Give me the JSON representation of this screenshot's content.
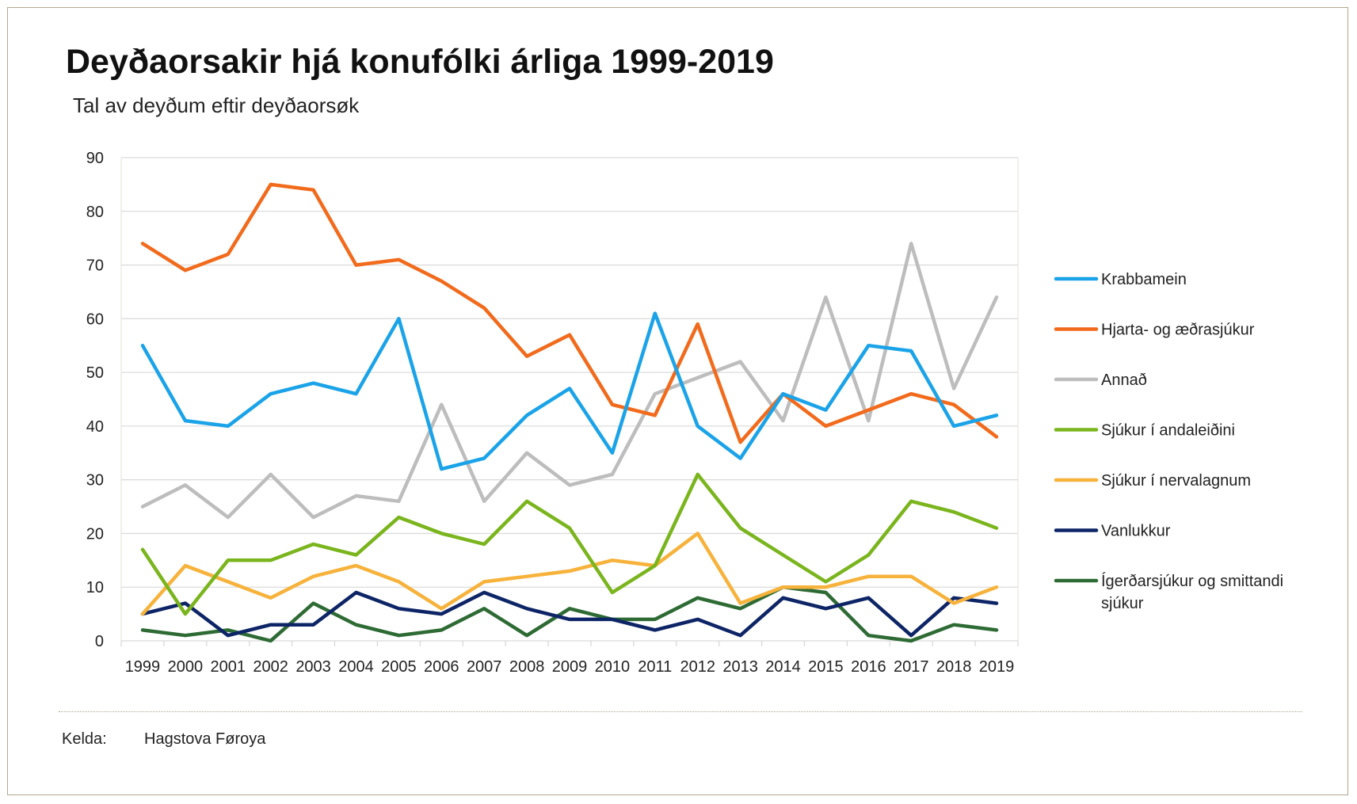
{
  "title": "Deyðaorsakir hjá konufólki árliga 1999-2019",
  "subtitle": "Tal av deyðum eftir deyðaorsøk",
  "source": {
    "label": "Kelda:",
    "value": "Hagstova Føroya"
  },
  "chart_data": {
    "type": "line",
    "title": "Deyðaorsakir hjá konufólki árliga 1999-2019",
    "subtitle": "Tal av deyðum eftir deyðaorsøk",
    "xlabel": "",
    "ylabel": "",
    "ylim": [
      0,
      90
    ],
    "yticks": [
      0,
      10,
      20,
      30,
      40,
      50,
      60,
      70,
      80,
      90
    ],
    "grid": true,
    "legend_position": "right",
    "categories": [
      "1999",
      "2000",
      "2001",
      "2002",
      "2003",
      "2004",
      "2005",
      "2006",
      "2007",
      "2008",
      "2009",
      "2010",
      "2011",
      "2012",
      "2013",
      "2014",
      "2015",
      "2016",
      "2017",
      "2018",
      "2019"
    ],
    "series": [
      {
        "name": "Krabbamein",
        "color": "#1aa3e8",
        "values": [
          55,
          41,
          40,
          46,
          48,
          46,
          60,
          32,
          34,
          42,
          47,
          35,
          61,
          40,
          34,
          46,
          43,
          55,
          54,
          40,
          42
        ]
      },
      {
        "name": "Hjarta- og æðrasjúkur",
        "color": "#f26a1b",
        "values": [
          74,
          69,
          72,
          85,
          84,
          70,
          71,
          67,
          62,
          53,
          57,
          44,
          42,
          59,
          37,
          46,
          40,
          43,
          46,
          44,
          38
        ]
      },
      {
        "name": "Annað",
        "color": "#bdbdbd",
        "values": [
          25,
          29,
          23,
          31,
          23,
          27,
          26,
          44,
          26,
          35,
          29,
          31,
          46,
          49,
          52,
          41,
          64,
          41,
          74,
          47,
          64
        ]
      },
      {
        "name": "Sjúkur í andaleiðini",
        "color": "#7ab51d",
        "values": [
          17,
          5,
          15,
          15,
          18,
          16,
          23,
          20,
          18,
          26,
          21,
          9,
          14,
          31,
          21,
          16,
          11,
          16,
          26,
          24,
          21
        ]
      },
      {
        "name": "Sjúkur í nervalagnum",
        "color": "#f7b23b",
        "values": [
          5,
          14,
          11,
          8,
          12,
          14,
          11,
          6,
          11,
          12,
          13,
          15,
          14,
          20,
          7,
          10,
          10,
          12,
          12,
          7,
          10
        ]
      },
      {
        "name": "Vanlukkur",
        "color": "#0d2466",
        "values": [
          5,
          7,
          1,
          3,
          3,
          9,
          6,
          5,
          9,
          6,
          4,
          4,
          2,
          4,
          1,
          8,
          6,
          8,
          1,
          8,
          7
        ]
      },
      {
        "name": "Ígerðarsjúkur og smittandi sjúkur",
        "color": "#2e6b34",
        "legend_lines": [
          "Ígerðarsjúkur og smittandi",
          "sjúkur"
        ],
        "values": [
          2,
          1,
          2,
          0,
          7,
          3,
          1,
          2,
          6,
          1,
          6,
          4,
          4,
          8,
          6,
          10,
          9,
          1,
          0,
          3,
          2
        ]
      }
    ]
  }
}
